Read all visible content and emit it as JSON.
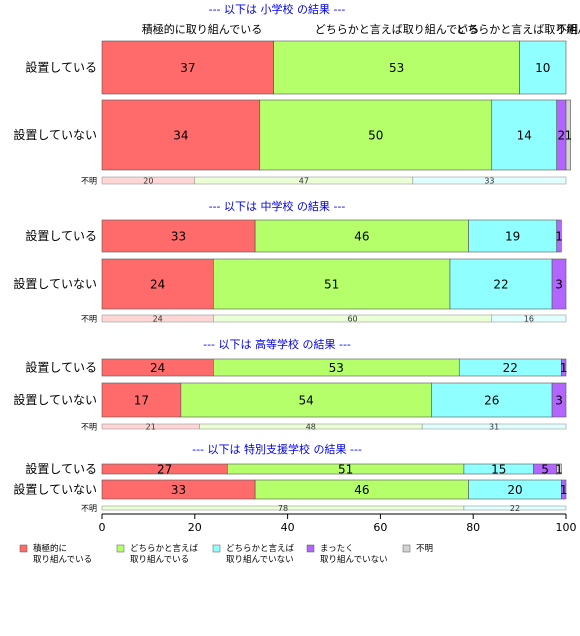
{
  "chart_data": {
    "type": "bar",
    "orientation": "horizontal",
    "stacked": true,
    "xlim": [
      0,
      100
    ],
    "x_ticks": [
      "0",
      "20",
      "40",
      "60",
      "80",
      "100"
    ],
    "colors": [
      "#ff6b6b",
      "#b5ff6b",
      "#8fffff",
      "#b266ff",
      "#d3d3d3"
    ],
    "legend": {
      "placement": "bottom-left",
      "items": [
        [
          "積極的に",
          "取り組んでいる"
        ],
        [
          "どちらかと言えば",
          "取り組んでいる"
        ],
        [
          "どちらかと言えば",
          "取り組んでいない"
        ],
        [
          "まったく",
          "取り組んでいない"
        ],
        [
          "不明"
        ]
      ]
    },
    "top_labels": [
      "積極的に取り組んでいる",
      "どちらかと言えば取り組んでいる",
      "どちらかと言えば取り組んでいない",
      "不明"
    ],
    "panels": [
      {
        "title": "--- 以下は 小学校 の結果 ---",
        "rows": [
          {
            "label": "設置している",
            "values": [
              37,
              53,
              10,
              0,
              0
            ],
            "value_labels": [
              "37",
              "53",
              "10",
              "",
              ""
            ]
          },
          {
            "label": "設置していない",
            "values": [
              34,
              50,
              14,
              2,
              1
            ],
            "value_labels": [
              "34",
              "50",
              "14",
              "2",
              "1"
            ]
          }
        ],
        "unknown": {
          "label": "不明",
          "values": [
            20,
            47,
            33,
            0,
            0
          ],
          "value_labels": [
            "20",
            "47",
            "33",
            "",
            ""
          ]
        }
      },
      {
        "title": "--- 以下は 中学校 の結果 ---",
        "rows": [
          {
            "label": "設置している",
            "values": [
              33,
              46,
              19,
              1,
              0
            ],
            "value_labels": [
              "33",
              "46",
              "19",
              "1",
              ""
            ]
          },
          {
            "label": "設置していない",
            "values": [
              24,
              51,
              22,
              3,
              0
            ],
            "value_labels": [
              "24",
              "51",
              "22",
              "3",
              ""
            ]
          }
        ],
        "unknown": {
          "label": "不明",
          "values": [
            24,
            60,
            16,
            0,
            0
          ],
          "value_labels": [
            "24",
            "60",
            "16",
            "",
            ""
          ]
        }
      },
      {
        "title": "--- 以下は 高等学校 の結果 ---",
        "rows": [
          {
            "label": "設置している",
            "values": [
              24,
              53,
              22,
              1,
              0
            ],
            "value_labels": [
              "24",
              "53",
              "22",
              "1",
              ""
            ]
          },
          {
            "label": "設置していない",
            "values": [
              17,
              54,
              26,
              3,
              0
            ],
            "value_labels": [
              "17",
              "54",
              "26",
              "3",
              ""
            ]
          }
        ],
        "unknown": {
          "label": "不明",
          "values": [
            21,
            48,
            31,
            0,
            0
          ],
          "value_labels": [
            "21",
            "48",
            "31",
            "",
            ""
          ]
        }
      },
      {
        "title": "--- 以下は 特別支援学校 の結果 ---",
        "rows": [
          {
            "label": "設置している",
            "values": [
              27,
              51,
              15,
              5,
              1
            ],
            "value_labels": [
              "27",
              "51",
              "15",
              "5",
              "1"
            ]
          },
          {
            "label": "設置していない",
            "values": [
              33,
              46,
              20,
              1,
              0
            ],
            "value_labels": [
              "33",
              "46",
              "20",
              "1",
              ""
            ]
          }
        ],
        "unknown": {
          "label": "不明",
          "values": [
            0,
            78,
            22,
            0,
            0
          ],
          "value_labels": [
            "",
            "78",
            "22",
            "",
            ""
          ]
        }
      }
    ]
  }
}
